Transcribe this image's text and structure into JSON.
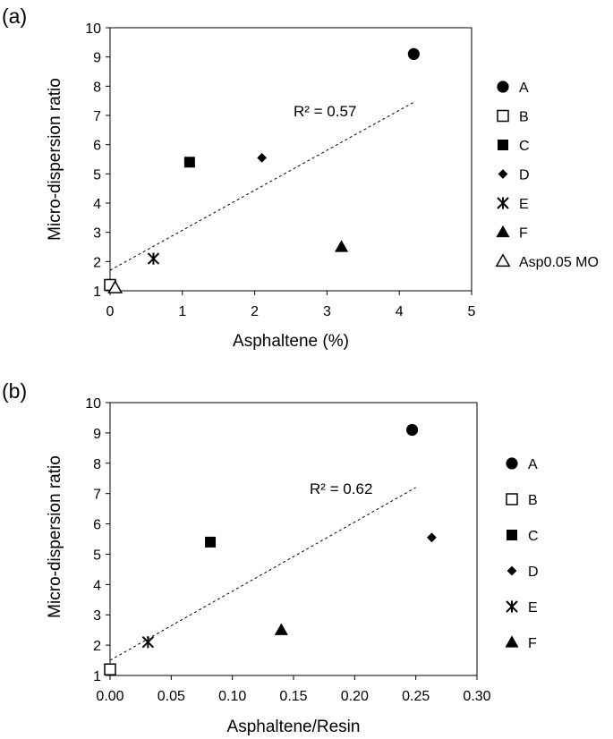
{
  "chart_data": [
    {
      "type": "scatter",
      "panel_label": "(a)",
      "xlabel": "Asphaltene (%)",
      "ylabel": "Micro-dispersion ratio",
      "xlim": [
        0,
        5
      ],
      "ylim": [
        1,
        10
      ],
      "xticks": [
        "0",
        "1",
        "2",
        "3",
        "4",
        "5"
      ],
      "yticks": [
        "1",
        "2",
        "3",
        "4",
        "5",
        "6",
        "7",
        "8",
        "9",
        "10"
      ],
      "grid": false,
      "legend_position": "right",
      "trendline": {
        "style": "dashed",
        "r2_label": "R² = 0.57",
        "from": [
          0,
          1.7
        ],
        "to": [
          4.2,
          7.45
        ]
      },
      "series": [
        {
          "name": "A",
          "marker": "filled-circle",
          "x": 4.2,
          "y": 9.1
        },
        {
          "name": "B",
          "marker": "open-square",
          "x": 0.0,
          "y": 1.2
        },
        {
          "name": "C",
          "marker": "filled-square",
          "x": 1.1,
          "y": 5.4
        },
        {
          "name": "D",
          "marker": "filled-diamond",
          "x": 2.1,
          "y": 5.55
        },
        {
          "name": "E",
          "marker": "asterisk",
          "x": 0.6,
          "y": 2.1
        },
        {
          "name": "F",
          "marker": "filled-triangle",
          "x": 3.2,
          "y": 2.5
        },
        {
          "name": "Asp0.05 MO",
          "marker": "open-triangle",
          "x": 0.07,
          "y": 1.1
        }
      ]
    },
    {
      "type": "scatter",
      "panel_label": "(b)",
      "xlabel": "Asphaltene/Resin",
      "ylabel": "Micro-dispersion ratio",
      "xlim": [
        0,
        0.3
      ],
      "ylim": [
        1,
        10
      ],
      "xticks": [
        "0.00",
        "0.05",
        "0.10",
        "0.15",
        "0.20",
        "0.25",
        "0.30"
      ],
      "yticks": [
        "1",
        "2",
        "3",
        "4",
        "5",
        "6",
        "7",
        "8",
        "9",
        "10"
      ],
      "grid": false,
      "legend_position": "right",
      "trendline": {
        "style": "dashed",
        "r2_label": "R² = 0.62",
        "from": [
          0,
          1.5
        ],
        "to": [
          0.25,
          7.2
        ]
      },
      "series": [
        {
          "name": "A",
          "marker": "filled-circle",
          "x": 0.247,
          "y": 9.1
        },
        {
          "name": "B",
          "marker": "open-square",
          "x": 0.0,
          "y": 1.2
        },
        {
          "name": "C",
          "marker": "filled-square",
          "x": 0.082,
          "y": 5.4
        },
        {
          "name": "D",
          "marker": "filled-diamond",
          "x": 0.263,
          "y": 5.55
        },
        {
          "name": "E",
          "marker": "asterisk",
          "x": 0.031,
          "y": 2.1
        },
        {
          "name": "F",
          "marker": "filled-triangle",
          "x": 0.14,
          "y": 2.5
        }
      ]
    }
  ]
}
